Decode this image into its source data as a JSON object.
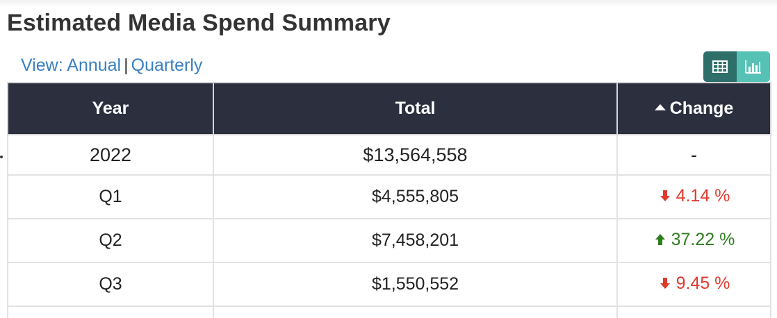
{
  "title": "Estimated Media Spend Summary",
  "view": {
    "prefix": "View:",
    "annual": "Annual",
    "separator": "|",
    "quarterly": "Quarterly"
  },
  "toggle": {
    "table_icon": "table-icon",
    "chart_icon": "bar-chart-icon",
    "active": "table"
  },
  "table": {
    "headers": {
      "year": "Year",
      "total": "Total",
      "change": "Change"
    },
    "sort_icon": "caret-up-icon",
    "year_row": {
      "year": "2022",
      "total": "$13,564,558",
      "change": "-"
    },
    "rows": [
      {
        "period": "Q1",
        "total": "$4,555,805",
        "change": "4.14 %",
        "direction": "down"
      },
      {
        "period": "Q2",
        "total": "$7,458,201",
        "change": "37.22 %",
        "direction": "up"
      },
      {
        "period": "Q3",
        "total": "$1,550,552",
        "change": "9.45 %",
        "direction": "down"
      }
    ]
  },
  "colors": {
    "header_bg": "#2b2f3e",
    "link": "#3a7fc1",
    "down": "#e03a2f",
    "up": "#2e7d1d",
    "toggle_active": "#2e6f6a",
    "toggle_inactive": "#56c2b6"
  }
}
